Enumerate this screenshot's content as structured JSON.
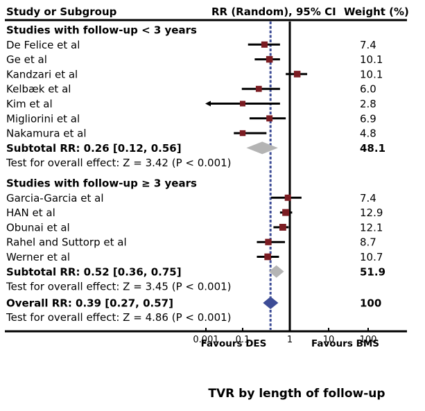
{
  "chart_data": {
    "type": "forest",
    "title": "TVR by length of follow-up",
    "scale": "log",
    "columns": {
      "study": "Study or Subgroup",
      "effect": "RR (Random), 95% CI",
      "weight": "Weight (%)"
    },
    "x_ticks": [
      {
        "value": 0.001,
        "label": "0.001"
      },
      {
        "value": 0.1,
        "label": "0.1"
      },
      {
        "value": 1,
        "label": "1"
      },
      {
        "value": 10,
        "label": "10"
      },
      {
        "value": 100,
        "label": "100"
      }
    ],
    "favours_left": "Favours DES",
    "favours_right": "Favours BMS",
    "null_line": 1,
    "overall_line": 0.39,
    "colors": {
      "study_marker": "#7b1c22",
      "subtotal_diamond": "#b4b4b4",
      "overall_diamond": "#3d4c96",
      "overall_line": "#3d4c96",
      "ci_line": "#000000"
    },
    "groups": [
      {
        "heading": "Studies with follow-up < 3 years",
        "studies": [
          {
            "name": "De Felice et al",
            "rr": 0.29,
            "ci": [
              0.13,
              0.62
            ],
            "weight": "7.4"
          },
          {
            "name": "Ge et al",
            "rr": 0.37,
            "ci": [
              0.18,
              0.62
            ],
            "weight": "10.1"
          },
          {
            "name": "Kandzari et al",
            "rr": 1.55,
            "ci": [
              0.82,
              2.8
            ],
            "weight": "10.1"
          },
          {
            "name": "Kelbæk et al",
            "rr": 0.22,
            "ci": [
              0.09,
              0.62
            ],
            "weight": "6.0"
          },
          {
            "name": "Kim et al",
            "rr": 0.1,
            "ci": [
              0.0005,
              0.62
            ],
            "ci_left_arrow": true,
            "weight": "2.8"
          },
          {
            "name": "Migliorini et al",
            "rr": 0.37,
            "ci": [
              0.14,
              0.82
            ],
            "weight": "6.9"
          },
          {
            "name": "Nakamura et al",
            "rr": 0.1,
            "ci": [
              0.033,
              0.32
            ],
            "weight": "4.8"
          }
        ],
        "subtotal": {
          "label": "Subtotal RR: 0.26 [0.12, 0.56]",
          "rr": 0.26,
          "ci": [
            0.12,
            0.56
          ],
          "weight": "48.1"
        },
        "test": "Test for overall effect: Z = 3.42 (P < 0.001)"
      },
      {
        "heading": "Studies with follow-up ≥ 3 years",
        "studies": [
          {
            "name": "Garcia-Garcia et al",
            "rr": 0.91,
            "ci": [
              0.4,
              2.0
            ],
            "weight": "7.4"
          },
          {
            "name": "HAN et al",
            "rr": 0.82,
            "ci": [
              0.62,
              1.15
            ],
            "weight": "12.9"
          },
          {
            "name": "Obunai et al",
            "rr": 0.71,
            "ci": [
              0.45,
              0.94
            ],
            "weight": "12.1"
          },
          {
            "name": "Rahel and Suttorp et al",
            "rr": 0.35,
            "ci": [
              0.2,
              0.79
            ],
            "weight": "8.7"
          },
          {
            "name": "Werner et al",
            "rr": 0.34,
            "ci": [
              0.2,
              0.59
            ],
            "weight": "10.7"
          }
        ],
        "subtotal": {
          "label": "Subtotal RR: 0.52 [0.36, 0.75]",
          "rr": 0.52,
          "ci": [
            0.36,
            0.75
          ],
          "weight": "51.9"
        },
        "test": "Test for overall effect: Z = 3.45 (P < 0.001)"
      }
    ],
    "overall": {
      "label": "Overall RR: 0.39 [0.27, 0.57]",
      "rr": 0.39,
      "ci": [
        0.27,
        0.57
      ],
      "weight": "100"
    },
    "overall_test": "Test for overall effect: Z = 4.86 (P < 0.001)"
  }
}
